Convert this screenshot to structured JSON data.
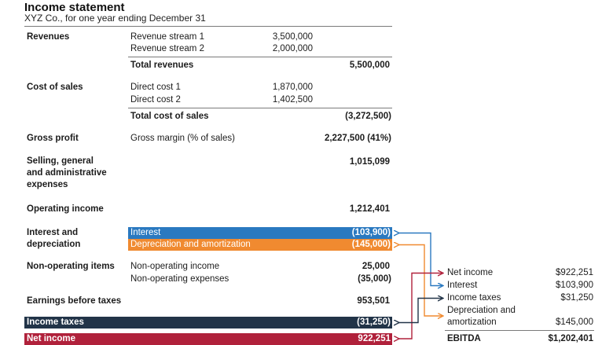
{
  "header": {
    "title": "Income statement",
    "subtitle": "XYZ Co., for one year ending December 31"
  },
  "revenues": {
    "label": "Revenues",
    "item1": "Revenue stream 1",
    "item1_value": "3,500,000",
    "item2": "Revenue stream 2",
    "item2_value": "2,000,000",
    "total_label": "Total revenues",
    "total_value": "5,500,000"
  },
  "cost_of_sales": {
    "label": "Cost of sales",
    "item1": "Direct cost 1",
    "item1_value": "1,870,000",
    "item2": "Direct cost 2",
    "item2_value": "1,402,500",
    "total_label": "Total cost of sales",
    "total_value": "(3,272,500)"
  },
  "gross_profit": {
    "label": "Gross profit",
    "item": "Gross margin (% of sales)",
    "value": "2,227,500 (41%)"
  },
  "sga": {
    "label_line1": "Selling, general",
    "label_line2": "and administrative",
    "label_line3": "expenses",
    "value": "1,015,099"
  },
  "operating_income": {
    "label": "Operating income",
    "value": "1,212,401"
  },
  "interest_depreciation": {
    "label_line1": "Interest and",
    "label_line2": "depreciation",
    "interest_label": "Interest",
    "interest_value": "(103,900)",
    "depr_label": "Depreciation and amortization",
    "depr_value": "(145,000)"
  },
  "non_operating": {
    "label": "Non-operating items",
    "item1": "Non-operating income",
    "item1_value": "25,000",
    "item2": "Non-operating expenses",
    "item2_value": "(35,000)"
  },
  "ebt": {
    "label": "Earnings before taxes",
    "value": "953,501"
  },
  "income_taxes": {
    "label": "Income taxes",
    "value": "(31,250)"
  },
  "net_income": {
    "label": "Net income",
    "value": "922,251"
  },
  "ebitda_panel": {
    "net_income_label": "Net income",
    "net_income_value": "$922,251",
    "interest_label": "Interest",
    "interest_value": "$103,900",
    "taxes_label": "Income taxes",
    "taxes_value": "$31,250",
    "da_label_line1": "Depreciation and",
    "da_label_line2": "amortization",
    "da_value": "$145,000",
    "total_label": "EBITDA",
    "total_value": "$1,202,401"
  },
  "colors": {
    "interest_blue": "#2a79c0",
    "depreciation_orange": "#f08a30",
    "taxes_navy": "#223448",
    "net_income_red": "#b0213b"
  }
}
